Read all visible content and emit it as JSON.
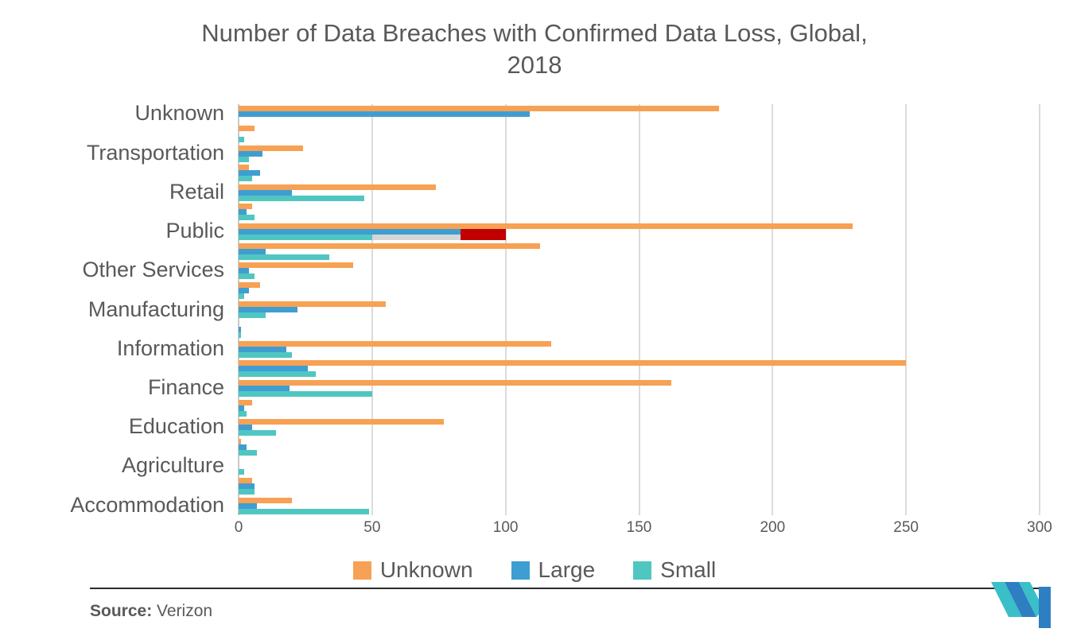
{
  "header": {
    "title_line1": "Number of Data Breaches with Confirmed Data Loss, Global,",
    "title_line2": "2018"
  },
  "chart_data": {
    "type": "bar",
    "orientation": "horizontal",
    "title": "Number of Data Breaches with Confirmed Data Loss, Global, 2018",
    "categories": [
      "Unknown",
      "",
      "Transportation",
      "",
      "Retail",
      "",
      "Public",
      "",
      "Other Services",
      "",
      "Manufacturing",
      "",
      "Information",
      "",
      "Finance",
      "",
      "Education",
      "",
      "Agriculture",
      "",
      "Accommodation"
    ],
    "axis_labels_visible": [
      "Unknown",
      "Transportation",
      "Retail",
      "Public",
      "Other Services",
      "Manufacturing",
      "Information",
      "Finance",
      "Education",
      "Agriculture",
      "Accommodation"
    ],
    "series": [
      {
        "name": "Unknown",
        "color": "#F7A154",
        "values": [
          180,
          6,
          24,
          4,
          74,
          5,
          230,
          113,
          43,
          8,
          55,
          0,
          117,
          250,
          162,
          5,
          77,
          1,
          0,
          5,
          20
        ]
      },
      {
        "name": "Large",
        "color": "#3E9ED2",
        "values": [
          109,
          0,
          9,
          8,
          20,
          3,
          83,
          10,
          4,
          4,
          22,
          1,
          18,
          26,
          19,
          2,
          5,
          3,
          0,
          6,
          7
        ]
      },
      {
        "name": "Small",
        "color": "#50C6C1",
        "values": [
          0,
          2,
          4,
          5,
          47,
          6,
          50,
          34,
          6,
          2,
          10,
          1,
          20,
          29,
          50,
          3,
          14,
          7,
          2,
          6,
          49
        ]
      }
    ],
    "annotations": [
      {
        "category_index": 6,
        "category_label": "Public",
        "gray_segment": [
          50,
          83
        ],
        "gray_color": "#D6D6D6",
        "red_segment": [
          83,
          100
        ],
        "red_color": "#C00000"
      }
    ],
    "xlabel": "",
    "ylabel": "",
    "xlim": [
      0,
      300
    ],
    "xticks": [
      0,
      50,
      100,
      150,
      200,
      250,
      300
    ],
    "grid": true,
    "gridline_color": "#DBDBDB",
    "legend_position": "bottom",
    "axis_text_color": "#595959"
  },
  "legend": {
    "items": [
      {
        "label": "Unknown",
        "color": "#F7A154"
      },
      {
        "label": "Large",
        "color": "#3E9ED2"
      },
      {
        "label": "Small",
        "color": "#50C6C1"
      }
    ]
  },
  "footer": {
    "source_label": "Source:",
    "source_value": "Verizon"
  },
  "logo": {
    "name": "mordor-intelligence-logo",
    "teal": "#3ABFC9",
    "blue": "#2E7FC2"
  }
}
